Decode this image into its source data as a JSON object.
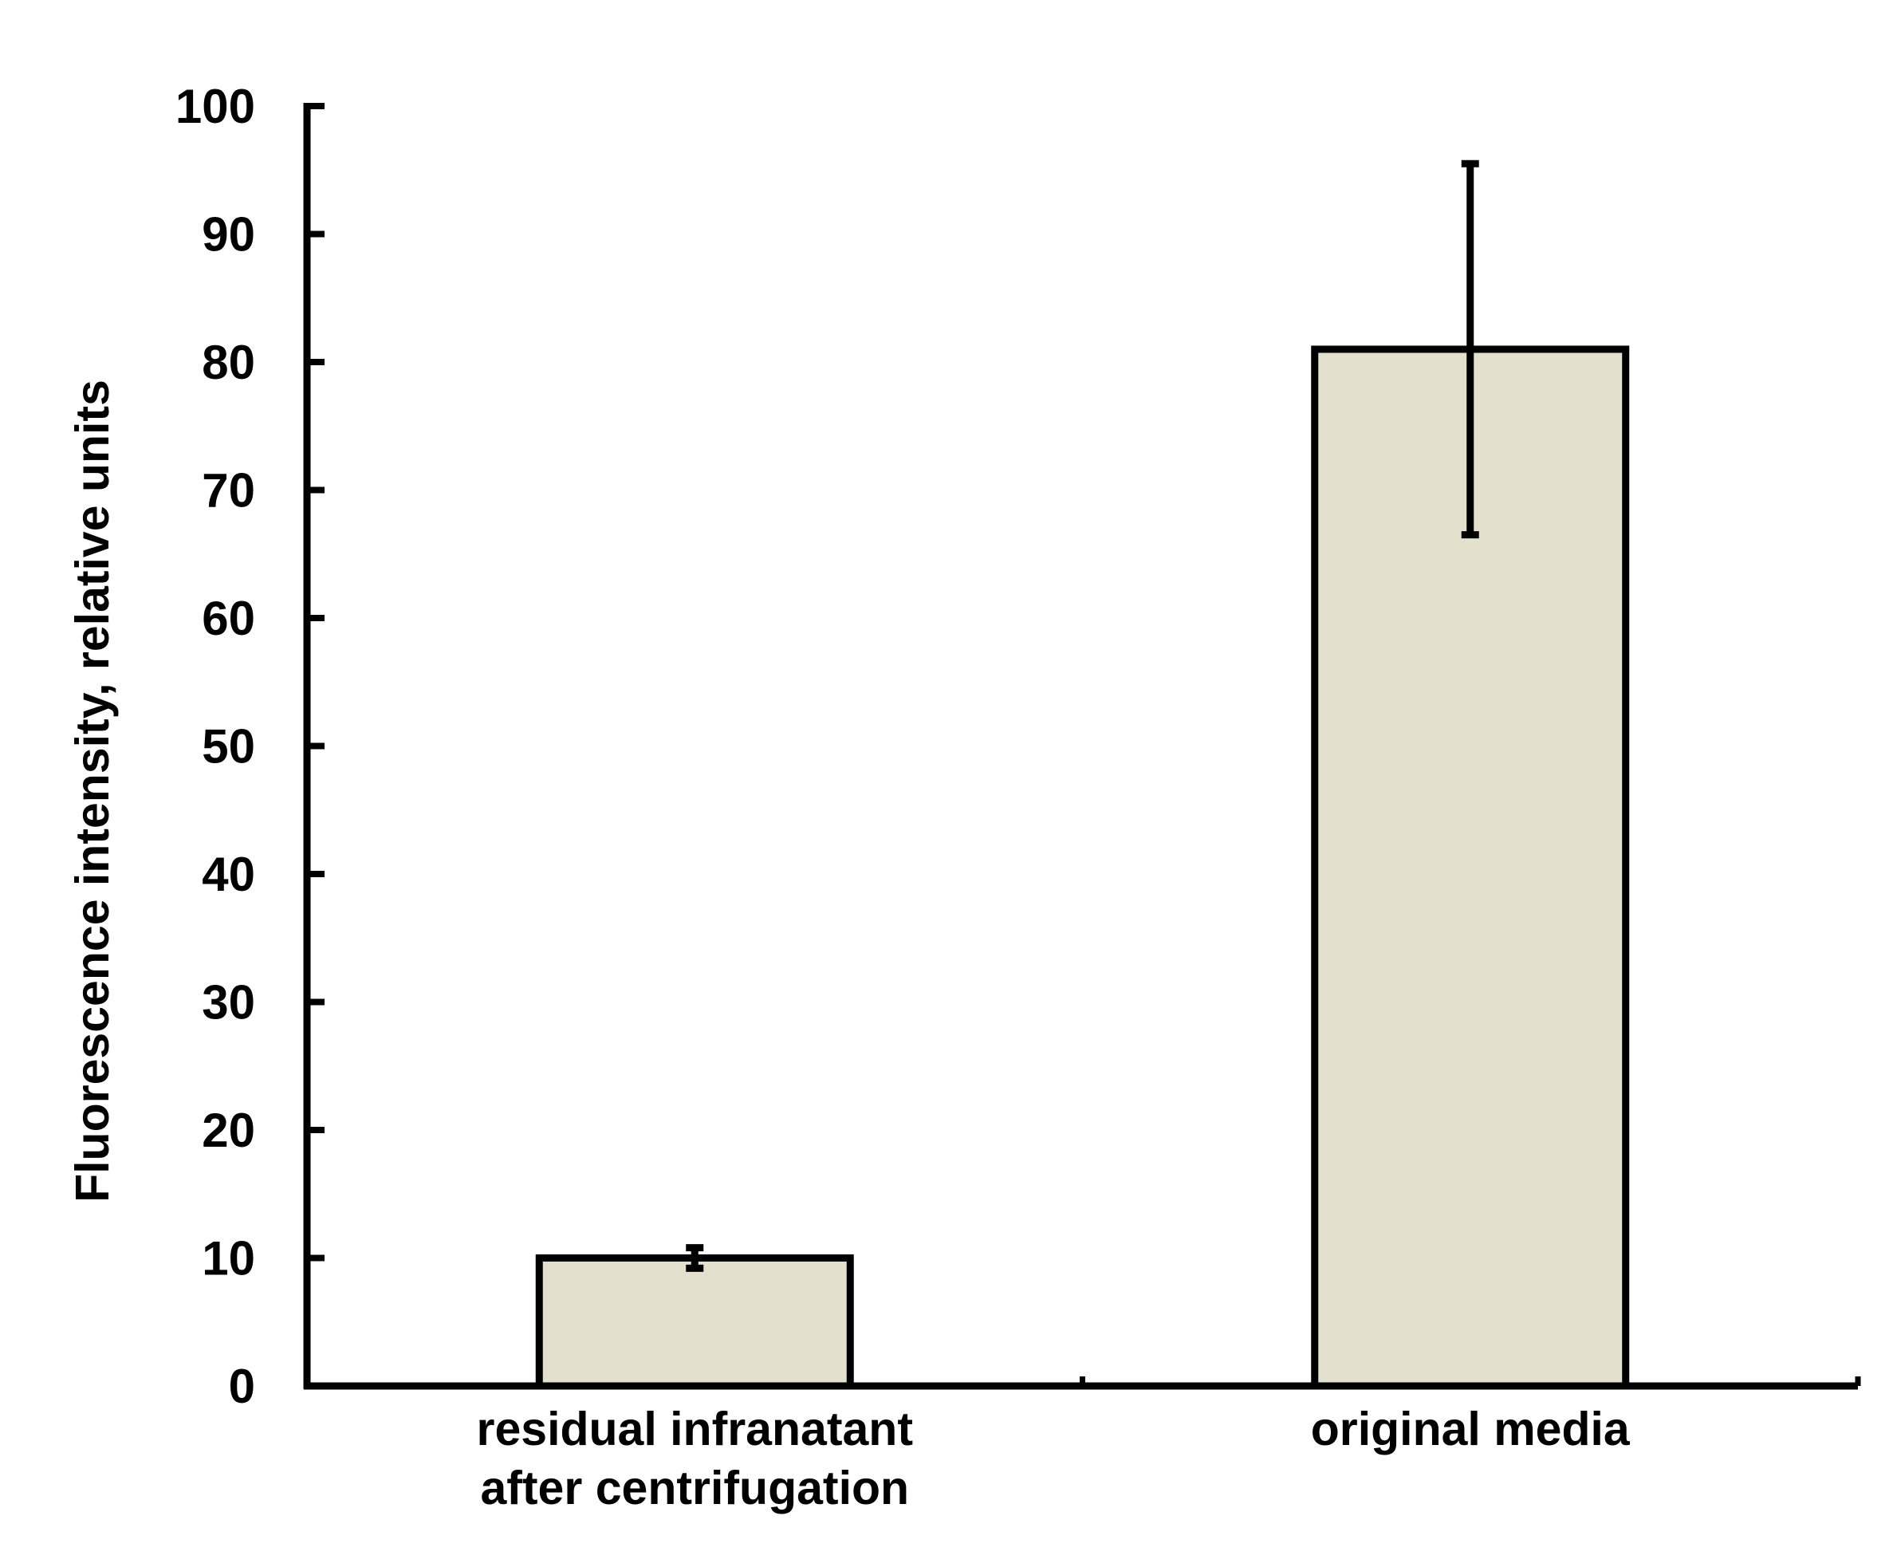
{
  "chart_data": {
    "type": "bar",
    "title": "",
    "ylabel": "Fluorescence intensity, relative units",
    "xlabel": "",
    "categories": [
      [
        "residual infranatant",
        "after centrifugation"
      ],
      [
        "original media"
      ]
    ],
    "values": [
      10,
      81
    ],
    "errors": [
      0.8,
      14.5
    ],
    "ylim": [
      0,
      100
    ],
    "yticks": [
      0,
      10,
      20,
      30,
      40,
      50,
      60,
      70,
      80,
      90,
      100
    ],
    "grid": false,
    "legend": "none",
    "colors": {
      "bar_fill": "#e3e0cd",
      "bar_stroke": "#000000",
      "axis": "#000000"
    }
  }
}
